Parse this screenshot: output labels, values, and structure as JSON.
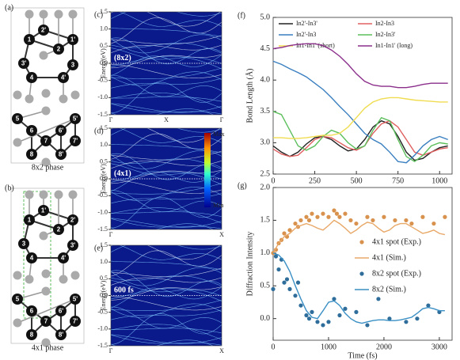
{
  "panels": {
    "a": {
      "label": "(a)",
      "caption": "8x2 phase",
      "atoms": [
        "1",
        "2'",
        "2",
        "1'",
        "3'",
        "3",
        "4",
        "4'",
        "5",
        "5'",
        "6",
        "6'",
        "7",
        "7'",
        "8",
        "8'"
      ]
    },
    "b": {
      "label": "(b)",
      "caption": "4x1 phase",
      "atoms": [
        "1",
        "1'",
        "2",
        "2'",
        "3",
        "3'",
        "4",
        "4'",
        "5",
        "5'",
        "6",
        "6'",
        "7",
        "7'",
        "8",
        "8'"
      ]
    }
  },
  "bands": {
    "ylabel": "Energy(eV)",
    "ylim": [
      -1.5,
      1.5
    ],
    "yticks": [
      1.5,
      {
        "value": 1,
        "label": "1.0"
      },
      0.5,
      {
        "value": 0,
        "label": "0.0"
      },
      -0.5,
      {
        "value": -1,
        "label": "-1.0"
      },
      -1.5
    ],
    "colorbar": {
      "max": "Max",
      "min": "Min"
    },
    "panels": [
      {
        "label": "(c)",
        "tag": "(8x2)",
        "xticks": [
          "Γ",
          "X",
          "Γ"
        ]
      },
      {
        "label": "(d)",
        "tag": "(4x1)",
        "xticks": [
          "Γ",
          "X"
        ]
      },
      {
        "label": "(e)",
        "tag": "600 fs",
        "xticks": [
          "Γ",
          "X"
        ]
      }
    ]
  },
  "chart_data": [
    {
      "type": "line",
      "label": "(f)",
      "ylabel": "Bond Length (Å)",
      "x": [
        0,
        50,
        100,
        150,
        200,
        250,
        300,
        350,
        400,
        450,
        500,
        550,
        600,
        650,
        700,
        750,
        800,
        850,
        900,
        950,
        1000,
        1050
      ],
      "series": [
        {
          "name": "In2'-In3'",
          "color": "#222222",
          "values": [
            2.95,
            2.85,
            2.78,
            2.85,
            2.98,
            3.08,
            3.1,
            3.05,
            2.95,
            2.87,
            2.9,
            3.05,
            3.25,
            3.35,
            3.3,
            3.1,
            2.85,
            2.72,
            2.75,
            2.85,
            2.92,
            2.95
          ]
        },
        {
          "name": "In2-In3",
          "color": "#e06060",
          "values": [
            2.9,
            2.82,
            2.78,
            2.8,
            2.92,
            3.05,
            3.1,
            3.08,
            3.0,
            2.92,
            2.88,
            2.95,
            3.15,
            3.3,
            3.35,
            3.25,
            3.05,
            2.85,
            2.8,
            2.85,
            2.9,
            2.92
          ]
        },
        {
          "name": "In2'-In3",
          "color": "#3a7fc0",
          "values": [
            4.3,
            4.25,
            4.18,
            4.12,
            4.05,
            3.95,
            3.85,
            3.72,
            3.58,
            3.45,
            3.3,
            3.15,
            3.05,
            2.98,
            2.85,
            2.7,
            2.68,
            2.8,
            2.95,
            3.05,
            3.1,
            3.05
          ]
        },
        {
          "name": "In2-In3'",
          "color": "#5cbf5c",
          "values": [
            3.5,
            3.45,
            3.2,
            2.95,
            2.88,
            2.95,
            3.1,
            3.2,
            3.15,
            3.0,
            2.9,
            2.95,
            3.2,
            3.4,
            3.35,
            3.05,
            2.78,
            2.7,
            2.8,
            2.95,
            3.0,
            2.98
          ]
        },
        {
          "name": "In1-In1' (short)",
          "color": "#f0dc50",
          "values": [
            3.08,
            3.08,
            3.07,
            3.07,
            3.08,
            3.1,
            3.12,
            3.12,
            3.15,
            3.25,
            3.4,
            3.55,
            3.65,
            3.7,
            3.72,
            3.72,
            3.7,
            3.68,
            3.67,
            3.66,
            3.65,
            3.65
          ]
        },
        {
          "name": "In1-In1' (long)",
          "color": "#8b2f8b",
          "values": [
            4.5,
            4.52,
            4.55,
            4.57,
            4.58,
            4.58,
            4.55,
            4.48,
            4.38,
            4.25,
            4.1,
            3.98,
            3.92,
            3.9,
            3.9,
            3.88,
            3.88,
            3.9,
            3.93,
            3.95,
            3.95,
            3.95
          ]
        }
      ],
      "xlim": [
        0,
        1075
      ],
      "ylim": [
        2.5,
        5.0
      ],
      "xticks": [
        0,
        250,
        500,
        750,
        1000
      ],
      "yticks": [
        2.5,
        {
          "value": 3,
          "label": "3.0"
        },
        3.5,
        {
          "value": 4,
          "label": "4.0"
        },
        4.5,
        {
          "value": 5,
          "label": "5.0"
        }
      ]
    },
    {
      "type": "scatter",
      "label": "(g)",
      "xlabel": "Time (fs)",
      "ylabel": "Diffraction Intensity",
      "series": [
        {
          "name": "4x1 spot (Exp.)",
          "kind": "points",
          "color": "#d8924e",
          "x": [
            0,
            50,
            100,
            150,
            200,
            250,
            300,
            400,
            450,
            500,
            600,
            650,
            700,
            800,
            900,
            1000,
            1100,
            1150,
            1200,
            1300,
            1400,
            1500,
            1700,
            1800,
            2000,
            2200,
            2400,
            2500,
            2700,
            2900,
            3100
          ],
          "values": [
            1.0,
            1.05,
            1.15,
            1.2,
            1.3,
            1.25,
            1.35,
            1.45,
            1.4,
            1.5,
            1.55,
            1.5,
            1.6,
            1.55,
            1.6,
            1.55,
            1.65,
            1.6,
            1.55,
            1.6,
            1.5,
            1.45,
            1.55,
            1.5,
            1.55,
            1.5,
            1.5,
            1.45,
            1.55,
            1.45,
            1.55
          ]
        },
        {
          "name": "4x1 (Sim.)",
          "kind": "line",
          "color": "#e8a868",
          "x": [
            0,
            100,
            200,
            300,
            400,
            500,
            600,
            700,
            800,
            900,
            1000,
            1100,
            1200,
            1300,
            1400,
            1500,
            1600,
            1700,
            1800,
            1900,
            2000,
            2100,
            2200,
            2300,
            2400,
            2500,
            2600,
            2700,
            2800,
            2900,
            3000,
            3100
          ],
          "values": [
            1.0,
            1.15,
            1.25,
            1.3,
            1.38,
            1.42,
            1.45,
            1.42,
            1.38,
            1.35,
            1.42,
            1.5,
            1.45,
            1.38,
            1.3,
            1.35,
            1.42,
            1.47,
            1.45,
            1.38,
            1.32,
            1.35,
            1.42,
            1.45,
            1.45,
            1.4,
            1.35,
            1.3,
            1.32,
            1.35,
            1.3,
            1.28
          ]
        },
        {
          "name": "8x2 spot (Exp.)",
          "kind": "points",
          "color": "#2f6e9b",
          "x": [
            0,
            50,
            100,
            150,
            200,
            250,
            300,
            400,
            450,
            500,
            600,
            650,
            700,
            800,
            900,
            1000,
            1100,
            1200,
            1300,
            1500,
            1700,
            1900,
            2100,
            2400,
            2600,
            2800,
            3000
          ],
          "values": [
            0.45,
            0.95,
            0.75,
            0.9,
            0.55,
            0.6,
            0.45,
            0.35,
            0.55,
            0.2,
            0.05,
            0.0,
            0.1,
            -0.05,
            -0.1,
            -0.05,
            0.3,
            0.05,
            0.15,
            0.1,
            -0.1,
            0.3,
            0.0,
            -0.05,
            0.0,
            0.2,
            0.1
          ]
        },
        {
          "name": "8x2 (Sim.)",
          "kind": "line",
          "color": "#3a8fc4",
          "x": [
            0,
            100,
            200,
            300,
            400,
            500,
            600,
            700,
            800,
            900,
            1000,
            1100,
            1200,
            1300,
            1400,
            1500,
            1600,
            1700,
            1800,
            1900,
            2000,
            2100,
            2200,
            2300,
            2400,
            2500,
            2600,
            2700,
            2800,
            2900,
            3000,
            3100
          ],
          "values": [
            1.0,
            0.97,
            0.88,
            0.72,
            0.5,
            0.3,
            0.12,
            0.02,
            0.0,
            0.12,
            0.25,
            0.27,
            0.2,
            0.08,
            0.0,
            -0.05,
            -0.07,
            -0.05,
            -0.03,
            -0.02,
            -0.02,
            -0.03,
            -0.03,
            -0.02,
            0.0,
            0.02,
            0.08,
            0.15,
            0.17,
            0.15,
            0.12,
            0.12
          ]
        }
      ],
      "xlim": [
        0,
        3230
      ],
      "ylim": [
        -0.33,
        2.0
      ],
      "xticks": [
        0,
        1000,
        2000,
        3000
      ],
      "yticks": [
        {
          "value": 0,
          "label": "0.0"
        },
        0.5,
        {
          "value": 1,
          "label": "1.0"
        },
        1.5,
        {
          "value": 2,
          "label": "2.0"
        }
      ]
    }
  ]
}
